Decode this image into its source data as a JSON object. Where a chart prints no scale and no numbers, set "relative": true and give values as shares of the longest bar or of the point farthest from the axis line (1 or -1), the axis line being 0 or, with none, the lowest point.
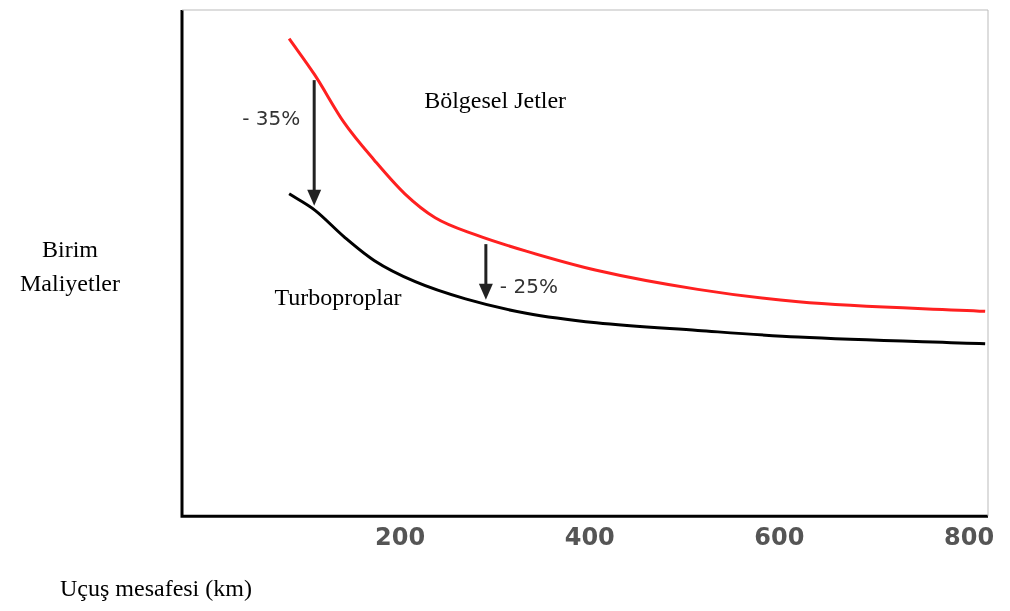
{
  "chart_data": {
    "type": "line",
    "relative": true,
    "xlabel": "Uçuş mesafesi (km)",
    "ylabel": "Birim Maliyetler",
    "xlim": [
      -30,
      820
    ],
    "xticks": [
      200,
      400,
      600,
      800
    ],
    "tick_labels": "x",
    "grid": false,
    "legend": false,
    "marker": "none",
    "line_style": "solid",
    "series": [
      {
        "name": "Bölgesel Jetler",
        "color": "#ff2020",
        "x": [
          83,
          110,
          141,
          173,
          205,
          237,
          280,
          333,
          407,
          514,
          620,
          817
        ],
        "values": [
          1,
          0.924,
          0.824,
          0.745,
          0.675,
          0.625,
          0.589,
          0.555,
          0.515,
          0.475,
          0.449,
          0.429
        ]
      },
      {
        "name": "Turboproplar",
        "color": "#000000",
        "x": [
          83,
          110,
          141,
          173,
          216,
          269,
          333,
          407,
          514,
          620,
          817
        ],
        "values": [
          0.675,
          0.641,
          0.585,
          0.535,
          0.491,
          0.455,
          0.425,
          0.405,
          0.389,
          0.375,
          0.361
        ]
      }
    ],
    "annotations": [
      "- 35%",
      "- 25%"
    ]
  }
}
